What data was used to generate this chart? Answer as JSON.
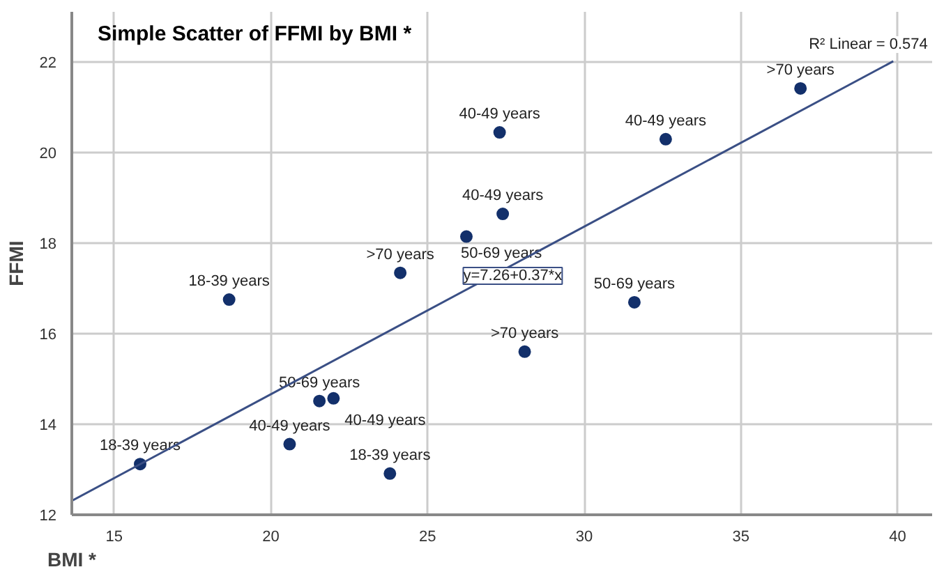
{
  "chart_data": {
    "type": "scatter",
    "title": "Simple Scatter of FFMI by BMI *",
    "xlabel": "BMI *",
    "ylabel": "FFMI",
    "xlim": [
      13.65,
      41.1
    ],
    "ylim": [
      12,
      23.1
    ],
    "xticks": [
      15,
      20,
      25,
      30,
      35,
      40
    ],
    "yticks": [
      12,
      14,
      16,
      18,
      20,
      22
    ],
    "grid": true,
    "marker": "circle",
    "series": [
      {
        "color": "#13306b",
        "x": [
          15.83,
          18.67,
          20.6,
          21.55,
          22.0,
          23.8,
          24.13,
          26.24,
          27.3,
          27.4,
          32.6,
          36.9,
          28.1,
          31.6
        ],
        "values": [
          13.12,
          16.75,
          13.56,
          14.51,
          14.57,
          12.91,
          17.34,
          18.14,
          20.44,
          18.64,
          20.29,
          21.41,
          15.6,
          16.69
        ],
        "value_labels": [
          "18-39 years",
          "18-39 years",
          "40-49 years",
          "50-69 years",
          "40-49 years",
          "18-39 years",
          ">70 years",
          "50-69 years",
          "40-49 years",
          "40-49 years",
          "40-49 years",
          ">70 years",
          ">70 years",
          "50-69 years"
        ]
      },
      {
        "type": "line",
        "marker": "none",
        "color": "#3a4f85",
        "x": [
          13.65,
          39.86
        ],
        "values": [
          12.31,
          22.01
        ]
      }
    ],
    "annotations": [
      "y=7.26+0.37*x",
      "R² Linear = 0.574"
    ]
  }
}
